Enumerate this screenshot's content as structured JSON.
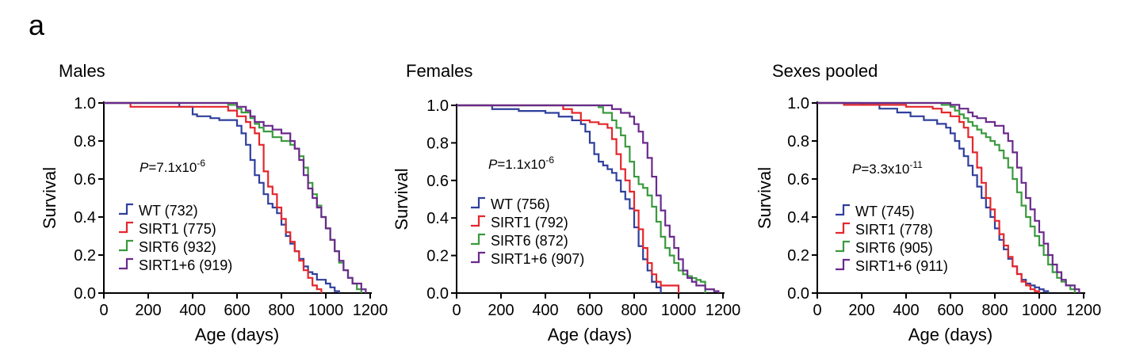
{
  "figure": {
    "panel_letter": "a"
  },
  "colors": {
    "WT": "#2f3f9c",
    "SIRT1": "#e4262c",
    "SIRT6": "#3a9a3e",
    "SIRT1+6": "#6a2a8c",
    "axis": "#000000"
  },
  "chart_data": [
    {
      "type": "line",
      "title": "Males",
      "xlabel": "Age (days)",
      "ylabel": "Survival",
      "xlim": [
        0,
        1200
      ],
      "ylim": [
        0,
        1.0
      ],
      "xticks": [
        "0",
        "200",
        "400",
        "600",
        "800",
        "1000",
        "1200"
      ],
      "yticks": [
        "0.0",
        "0.2",
        "0.4",
        "0.6",
        "0.8",
        "1.0"
      ],
      "step": true,
      "pvalue": {
        "prefix": "P",
        "text": "=7.1x10",
        "exp": "-6"
      },
      "legend": [
        {
          "name": "WT",
          "value": "(732)"
        },
        {
          "name": "SIRT1",
          "value": "(775)"
        },
        {
          "name": "SIRT6",
          "value": "(932)"
        },
        {
          "name": "SIRT1+6",
          "value": "(919)"
        }
      ],
      "series": [
        {
          "name": "WT",
          "x": [
            0,
            340,
            400,
            420,
            480,
            520,
            560,
            600,
            620,
            640,
            660,
            680,
            700,
            720,
            740,
            760,
            780,
            800,
            820,
            840,
            860,
            880,
            900,
            920,
            940,
            960,
            980,
            1000,
            1020,
            1040,
            1060
          ],
          "y": [
            1.0,
            0.98,
            0.94,
            0.93,
            0.92,
            0.91,
            0.91,
            0.88,
            0.84,
            0.78,
            0.7,
            0.62,
            0.58,
            0.52,
            0.47,
            0.45,
            0.42,
            0.36,
            0.3,
            0.26,
            0.22,
            0.18,
            0.14,
            0.11,
            0.1,
            0.07,
            0.07,
            0.05,
            0.03,
            0.01,
            0.0
          ]
        },
        {
          "name": "SIRT1",
          "x": [
            0,
            120,
            560,
            600,
            640,
            660,
            680,
            700,
            720,
            740,
            760,
            780,
            800,
            820,
            840,
            860,
            880,
            900,
            920,
            940,
            960,
            980
          ],
          "y": [
            1.0,
            0.98,
            0.96,
            0.93,
            0.9,
            0.87,
            0.84,
            0.78,
            0.64,
            0.56,
            0.52,
            0.45,
            0.39,
            0.32,
            0.27,
            0.22,
            0.17,
            0.12,
            0.08,
            0.04,
            0.02,
            0.0
          ]
        },
        {
          "name": "SIRT6",
          "x": [
            0,
            560,
            600,
            620,
            660,
            680,
            700,
            720,
            760,
            800,
            840,
            860,
            880,
            900,
            920,
            940,
            960,
            980,
            1000,
            1020,
            1040,
            1060,
            1080,
            1100,
            1120,
            1140,
            1160
          ],
          "y": [
            1.0,
            0.99,
            0.97,
            0.95,
            0.92,
            0.89,
            0.87,
            0.85,
            0.82,
            0.8,
            0.78,
            0.76,
            0.72,
            0.66,
            0.58,
            0.52,
            0.46,
            0.4,
            0.34,
            0.28,
            0.22,
            0.16,
            0.12,
            0.08,
            0.05,
            0.02,
            0.0
          ]
        },
        {
          "name": "SIRT1+6",
          "x": [
            0,
            600,
            640,
            660,
            680,
            720,
            760,
            800,
            840,
            860,
            880,
            900,
            920,
            940,
            960,
            980,
            1000,
            1020,
            1040,
            1060,
            1080,
            1100,
            1120,
            1160,
            1180
          ],
          "y": [
            1.0,
            0.98,
            0.96,
            0.93,
            0.9,
            0.88,
            0.86,
            0.84,
            0.8,
            0.76,
            0.7,
            0.62,
            0.55,
            0.5,
            0.45,
            0.4,
            0.34,
            0.28,
            0.22,
            0.17,
            0.12,
            0.08,
            0.05,
            0.02,
            0.0
          ]
        }
      ]
    },
    {
      "type": "line",
      "title": "Females",
      "xlabel": "Age (days)",
      "ylabel": "Survival",
      "xlim": [
        0,
        1200
      ],
      "ylim": [
        0,
        1.0
      ],
      "xticks": [
        "0",
        "200",
        "400",
        "600",
        "800",
        "1000",
        "1200"
      ],
      "yticks": [
        "0.0",
        "0.2",
        "0.4",
        "0.6",
        "0.8",
        "1.0"
      ],
      "step": true,
      "pvalue": {
        "prefix": "P",
        "text": "=1.1x10",
        "exp": "-6"
      },
      "legend": [
        {
          "name": "WT",
          "value": "(756)"
        },
        {
          "name": "SIRT1",
          "value": "(792)"
        },
        {
          "name": "SIRT6",
          "value": "(872)"
        },
        {
          "name": "SIRT1+6",
          "value": "(907)"
        }
      ],
      "series": [
        {
          "name": "WT",
          "x": [
            0,
            160,
            280,
            400,
            460,
            520,
            560,
            580,
            600,
            620,
            640,
            660,
            680,
            700,
            720,
            740,
            760,
            780,
            800,
            820,
            840,
            860,
            880,
            900,
            920
          ],
          "y": [
            1.0,
            0.98,
            0.97,
            0.96,
            0.94,
            0.92,
            0.9,
            0.86,
            0.8,
            0.74,
            0.7,
            0.68,
            0.66,
            0.64,
            0.6,
            0.54,
            0.5,
            0.45,
            0.35,
            0.25,
            0.18,
            0.12,
            0.06,
            0.03,
            0.0
          ]
        },
        {
          "name": "SIRT1",
          "x": [
            0,
            480,
            520,
            560,
            600,
            640,
            680,
            700,
            720,
            740,
            760,
            780,
            800,
            820,
            840,
            860,
            880,
            900,
            920,
            1000
          ],
          "y": [
            1.0,
            0.98,
            0.96,
            0.92,
            0.91,
            0.9,
            0.88,
            0.82,
            0.74,
            0.66,
            0.6,
            0.54,
            0.44,
            0.34,
            0.24,
            0.16,
            0.1,
            0.06,
            0.04,
            0.0
          ]
        },
        {
          "name": "SIRT6",
          "x": [
            0,
            640,
            660,
            700,
            720,
            740,
            760,
            780,
            800,
            820,
            840,
            860,
            880,
            900,
            920,
            940,
            960,
            980,
            1000,
            1020,
            1040,
            1060,
            1080,
            1100,
            1120
          ],
          "y": [
            1.0,
            0.99,
            0.96,
            0.92,
            0.88,
            0.84,
            0.78,
            0.7,
            0.62,
            0.58,
            0.56,
            0.52,
            0.46,
            0.38,
            0.3,
            0.24,
            0.2,
            0.16,
            0.12,
            0.1,
            0.09,
            0.08,
            0.07,
            0.06,
            0.0
          ]
        },
        {
          "name": "SIRT1+6",
          "x": [
            0,
            700,
            740,
            780,
            800,
            820,
            840,
            860,
            880,
            900,
            920,
            940,
            960,
            980,
            1000,
            1020,
            1040,
            1060,
            1080,
            1120,
            1160,
            1180
          ],
          "y": [
            1.0,
            0.98,
            0.96,
            0.94,
            0.9,
            0.86,
            0.8,
            0.72,
            0.62,
            0.52,
            0.44,
            0.36,
            0.3,
            0.24,
            0.18,
            0.12,
            0.08,
            0.06,
            0.04,
            0.02,
            0.01,
            0.0
          ]
        }
      ]
    },
    {
      "type": "line",
      "title": "Sexes pooled",
      "xlabel": "Age (days)",
      "ylabel": "Survival",
      "xlim": [
        0,
        1200
      ],
      "ylim": [
        0,
        1.0
      ],
      "xticks": [
        "0",
        "200",
        "400",
        "600",
        "800",
        "1000",
        "1200"
      ],
      "yticks": [
        "0.0",
        "0.2",
        "0.4",
        "0.6",
        "0.8",
        "1.0"
      ],
      "step": true,
      "pvalue": {
        "prefix": "P",
        "text": "=3.3x10",
        "exp": "-11"
      },
      "legend": [
        {
          "name": "WT",
          "value": "(745)"
        },
        {
          "name": "SIRT1",
          "value": "(778)"
        },
        {
          "name": "SIRT6",
          "value": "(905)"
        },
        {
          "name": "SIRT1+6",
          "value": "(911)"
        }
      ],
      "series": [
        {
          "name": "WT",
          "x": [
            0,
            200,
            280,
            360,
            420,
            480,
            540,
            580,
            600,
            620,
            640,
            660,
            680,
            700,
            720,
            740,
            760,
            780,
            800,
            820,
            840,
            860,
            880,
            900,
            920,
            940,
            960,
            980,
            1000,
            1020,
            1040
          ],
          "y": [
            1.0,
            0.99,
            0.97,
            0.95,
            0.93,
            0.91,
            0.89,
            0.87,
            0.84,
            0.8,
            0.76,
            0.72,
            0.67,
            0.62,
            0.56,
            0.5,
            0.45,
            0.4,
            0.34,
            0.28,
            0.23,
            0.18,
            0.14,
            0.1,
            0.07,
            0.05,
            0.04,
            0.03,
            0.02,
            0.01,
            0.0
          ]
        },
        {
          "name": "SIRT1",
          "x": [
            0,
            120,
            400,
            520,
            560,
            600,
            640,
            660,
            680,
            700,
            720,
            740,
            760,
            780,
            800,
            820,
            840,
            860,
            880,
            900,
            920,
            940,
            960,
            980,
            1000
          ],
          "y": [
            1.0,
            0.99,
            0.98,
            0.97,
            0.95,
            0.93,
            0.9,
            0.87,
            0.82,
            0.74,
            0.66,
            0.58,
            0.5,
            0.44,
            0.38,
            0.31,
            0.25,
            0.19,
            0.14,
            0.1,
            0.06,
            0.04,
            0.02,
            0.01,
            0.0
          ]
        },
        {
          "name": "SIRT6",
          "x": [
            0,
            560,
            600,
            620,
            640,
            660,
            680,
            700,
            720,
            740,
            760,
            780,
            800,
            820,
            840,
            860,
            880,
            900,
            920,
            940,
            960,
            980,
            1000,
            1020,
            1040,
            1060,
            1080,
            1100,
            1120,
            1140,
            1160
          ],
          "y": [
            1.0,
            0.99,
            0.98,
            0.96,
            0.94,
            0.92,
            0.9,
            0.88,
            0.86,
            0.84,
            0.82,
            0.8,
            0.78,
            0.75,
            0.71,
            0.66,
            0.6,
            0.53,
            0.46,
            0.4,
            0.35,
            0.3,
            0.25,
            0.2,
            0.15,
            0.11,
            0.08,
            0.06,
            0.04,
            0.02,
            0.0
          ]
        },
        {
          "name": "SIRT1+6",
          "x": [
            0,
            600,
            640,
            680,
            700,
            720,
            760,
            800,
            840,
            860,
            880,
            900,
            920,
            940,
            960,
            980,
            1000,
            1020,
            1040,
            1060,
            1080,
            1100,
            1120,
            1160,
            1180
          ],
          "y": [
            1.0,
            0.99,
            0.97,
            0.95,
            0.93,
            0.92,
            0.9,
            0.88,
            0.84,
            0.8,
            0.74,
            0.66,
            0.58,
            0.5,
            0.44,
            0.38,
            0.32,
            0.26,
            0.2,
            0.15,
            0.11,
            0.07,
            0.04,
            0.02,
            0.0
          ]
        }
      ]
    }
  ]
}
